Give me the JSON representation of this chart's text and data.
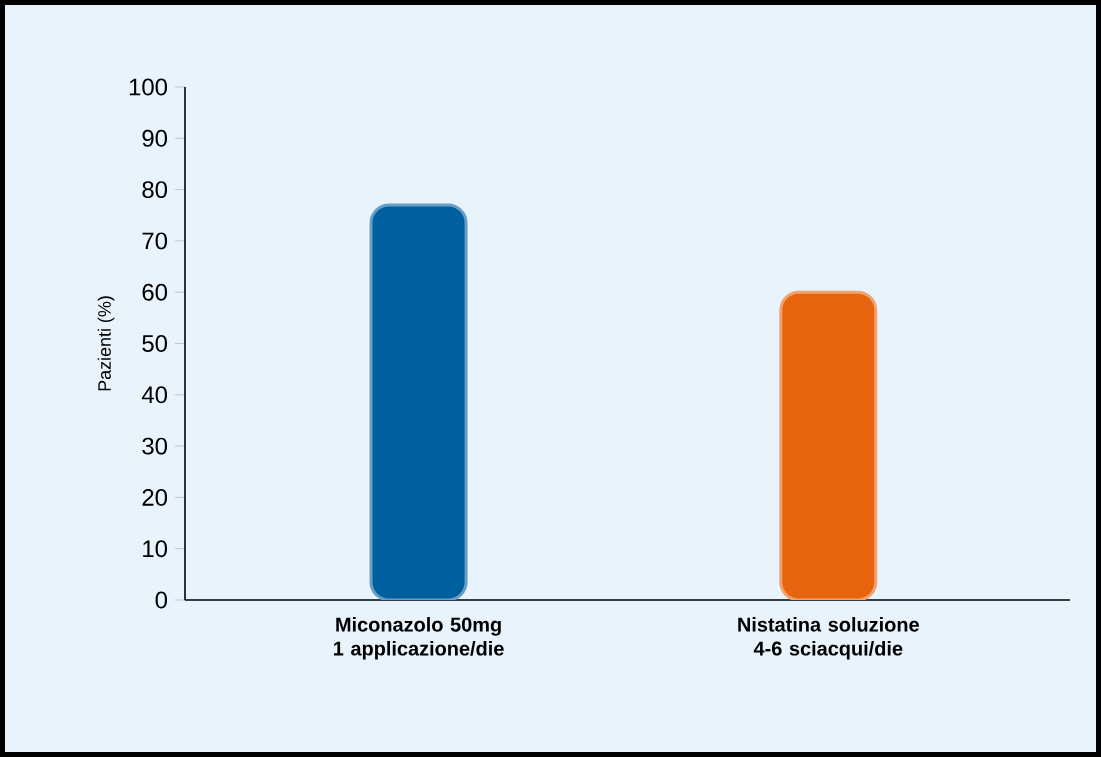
{
  "chart_data": {
    "type": "bar",
    "ylabel": "Pazienti (%)",
    "categories": [
      "Miconazolo 50mg 1 applicazione/die",
      "Nistatina soluzione 4-6 sciacqui/die"
    ],
    "values": [
      77,
      60
    ],
    "colors": [
      "#005f9e",
      "#e8650f"
    ],
    "ylim": [
      0,
      100
    ],
    "yticks": [
      0,
      10,
      20,
      30,
      40,
      50,
      60,
      70,
      80,
      90,
      100
    ]
  }
}
